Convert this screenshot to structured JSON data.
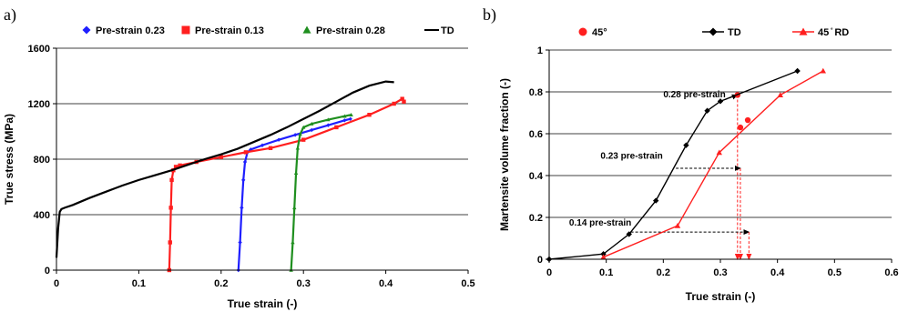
{
  "chart_data": [
    {
      "panel_label": "a)",
      "type": "line",
      "xlabel": "True strain (-)",
      "ylabel": "True stress (MPa)",
      "xlim": [
        0,
        0.5
      ],
      "ylim": [
        0,
        1600
      ],
      "xticks": [
        0,
        0.1,
        0.2,
        0.3,
        0.4,
        0.5
      ],
      "xtick_labels": [
        "0",
        "0.1",
        "0.2",
        "0.3",
        "0.4",
        "0.5"
      ],
      "yticks": [
        0,
        400,
        800,
        1200,
        1600
      ],
      "ytick_labels": [
        "0",
        "400",
        "800",
        "1200",
        "1600"
      ],
      "grid": "horizontal",
      "legend_position": "top",
      "series": [
        {
          "name": "Pre-strain 0.23",
          "color": "#1f1fff",
          "marker": "diamond",
          "x": [
            0.221,
            0.223,
            0.225,
            0.227,
            0.229,
            0.232,
            0.236,
            0.25,
            0.27,
            0.29,
            0.31,
            0.33,
            0.35,
            0.357
          ],
          "y": [
            0,
            200,
            450,
            650,
            780,
            850,
            870,
            900,
            940,
            975,
            1010,
            1045,
            1080,
            1090
          ]
        },
        {
          "name": "Pre-strain 0.13",
          "color": "#ff1f1f",
          "marker": "square",
          "x": [
            0.137,
            0.138,
            0.139,
            0.14,
            0.142,
            0.145,
            0.15,
            0.17,
            0.2,
            0.23,
            0.26,
            0.3,
            0.34,
            0.38,
            0.41,
            0.42,
            0.422
          ],
          "y": [
            0,
            200,
            450,
            650,
            720,
            745,
            755,
            780,
            815,
            850,
            880,
            940,
            1030,
            1120,
            1200,
            1235,
            1215
          ]
        },
        {
          "name": "Pre-strain 0.28",
          "color": "#1f8f1f",
          "marker": "triangle",
          "x": [
            0.285,
            0.287,
            0.289,
            0.291,
            0.293,
            0.296,
            0.3,
            0.31,
            0.33,
            0.35,
            0.358
          ],
          "y": [
            0,
            200,
            450,
            700,
            880,
            980,
            1030,
            1055,
            1085,
            1110,
            1120
          ]
        },
        {
          "name": "TD",
          "color": "#000000",
          "marker": "none",
          "x": [
            0,
            0.002,
            0.004,
            0.006,
            0.01,
            0.02,
            0.04,
            0.06,
            0.08,
            0.1,
            0.12,
            0.14,
            0.16,
            0.18,
            0.2,
            0.22,
            0.24,
            0.26,
            0.28,
            0.3,
            0.32,
            0.34,
            0.36,
            0.38,
            0.4,
            0.41
          ],
          "y": [
            90,
            300,
            420,
            440,
            450,
            470,
            520,
            565,
            610,
            650,
            685,
            720,
            760,
            800,
            835,
            875,
            925,
            975,
            1030,
            1090,
            1150,
            1215,
            1280,
            1330,
            1360,
            1355
          ]
        }
      ]
    },
    {
      "panel_label": "b)",
      "type": "line",
      "xlabel": "True strain (-)",
      "ylabel": "Martensite volume fraction (-)",
      "xlim": [
        0,
        0.6
      ],
      "ylim": [
        0,
        1
      ],
      "xticks": [
        0,
        0.1,
        0.2,
        0.3,
        0.4,
        0.5,
        0.6
      ],
      "xtick_labels": [
        "0",
        "0.1",
        "0.2",
        "0.3",
        "0.4",
        "0.5",
        "0.6"
      ],
      "yticks": [
        0,
        0.2,
        0.4,
        0.6,
        0.8,
        1
      ],
      "ytick_labels": [
        "0",
        "0.2",
        "0.4",
        "0.6",
        "0.8",
        "1"
      ],
      "grid": "horizontal",
      "legend_position": "top",
      "series": [
        {
          "name": "45°",
          "color": "#ff1f1f",
          "marker": "circle",
          "line": false,
          "x": [
            0.33,
            0.335,
            0.348
          ],
          "y": [
            0.785,
            0.63,
            0.665
          ]
        },
        {
          "name": "TD",
          "color": "#000000",
          "marker": "diamond",
          "line": true,
          "x": [
            0,
            0.095,
            0.14,
            0.187,
            0.24,
            0.277,
            0.3,
            0.435
          ],
          "y": [
            0,
            0.025,
            0.12,
            0.28,
            0.545,
            0.71,
            0.755,
            0.9
          ]
        },
        {
          "name": "45 ̊ RD",
          "color": "#ff1f1f",
          "marker": "triangle",
          "line": true,
          "x": [
            0.095,
            0.225,
            0.298,
            0.405,
            0.48
          ],
          "y": [
            0.01,
            0.16,
            0.51,
            0.785,
            0.9
          ]
        }
      ],
      "annotations": [
        {
          "text": "0.28 pre-strain",
          "x_text": 0.2,
          "y_text": 0.775,
          "arrow_from": [
            0.3,
            0.755
          ],
          "arrow_to": [
            0.33,
            0.785
          ],
          "drop_x": 0.33
        },
        {
          "text": "0.23 pre-strain",
          "x_text": 0.09,
          "y_text": 0.48,
          "arrow_from": [
            0.222,
            0.435
          ],
          "arrow_to": [
            0.335,
            0.435
          ],
          "drop_x": 0.335
        },
        {
          "text": "0.14 pre-strain",
          "x_text": 0.035,
          "y_text": 0.16,
          "arrow_from": [
            0.143,
            0.13
          ],
          "arrow_to": [
            0.35,
            0.13
          ],
          "drop_x": 0.35
        }
      ]
    }
  ]
}
